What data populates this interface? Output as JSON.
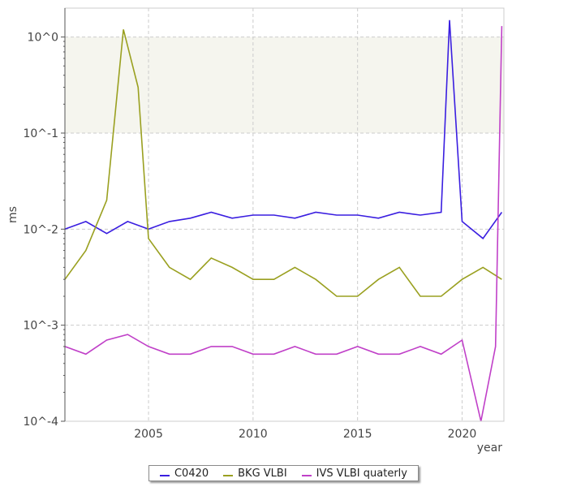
{
  "chart_data": {
    "type": "line",
    "title": "",
    "xlabel": "year",
    "ylabel": "ms",
    "yscale": "log",
    "xlim": [
      2001.0,
      2022.0
    ],
    "ylim": [
      0.0001,
      2.0
    ],
    "x_ticks": [
      2005,
      2010,
      2015,
      2020
    ],
    "x_tick_labels": [
      "2005",
      "2010",
      "2015",
      "2020"
    ],
    "y_ticks": [
      0.0001,
      0.001,
      0.01,
      0.1,
      1
    ],
    "y_tick_labels": [
      "10^-4",
      "10^-3",
      "10^-2",
      "10^-1",
      "10^0"
    ],
    "grid": true,
    "shaded_band": [
      0.1,
      1.0
    ],
    "legend_position": "bottom-center",
    "series": [
      {
        "name": "C0420",
        "color": "#3a1ee0",
        "x": [
          2001.0,
          2002.0,
          2003.0,
          2004.0,
          2005.0,
          2006.0,
          2007.0,
          2008.0,
          2009.0,
          2010.0,
          2011.0,
          2012.0,
          2013.0,
          2014.0,
          2015.0,
          2016.0,
          2017.0,
          2018.0,
          2019.0,
          2019.4,
          2020.0,
          2021.0,
          2021.9
        ],
        "y": [
          0.01,
          0.012,
          0.009,
          0.012,
          0.01,
          0.012,
          0.013,
          0.015,
          0.013,
          0.014,
          0.014,
          0.013,
          0.015,
          0.014,
          0.014,
          0.013,
          0.015,
          0.014,
          0.015,
          1.5,
          0.012,
          0.008,
          0.015
        ]
      },
      {
        "name": "BKG VLBI",
        "color": "#9aa020",
        "x": [
          2001.0,
          2002.0,
          2003.0,
          2003.8,
          2004.5,
          2005.0,
          2006.0,
          2007.0,
          2008.0,
          2009.0,
          2010.0,
          2011.0,
          2012.0,
          2013.0,
          2014.0,
          2015.0,
          2016.0,
          2017.0,
          2018.0,
          2019.0,
          2020.0,
          2021.0,
          2021.9
        ],
        "y": [
          0.003,
          0.006,
          0.02,
          1.2,
          0.3,
          0.008,
          0.004,
          0.003,
          0.005,
          0.004,
          0.003,
          0.003,
          0.004,
          0.003,
          0.002,
          0.002,
          0.003,
          0.004,
          0.002,
          0.002,
          0.003,
          0.004,
          0.003
        ]
      },
      {
        "name": "IVS VLBI quaterly",
        "color": "#c040c8",
        "x": [
          2001.0,
          2002.0,
          2003.0,
          2004.0,
          2005.0,
          2006.0,
          2007.0,
          2008.0,
          2009.0,
          2010.0,
          2011.0,
          2012.0,
          2013.0,
          2014.0,
          2015.0,
          2016.0,
          2017.0,
          2018.0,
          2019.0,
          2020.0,
          2020.9,
          2021.6,
          2021.9
        ],
        "y": [
          0.0006,
          0.0005,
          0.0007,
          0.0008,
          0.0006,
          0.0005,
          0.0005,
          0.0006,
          0.0006,
          0.0005,
          0.0005,
          0.0006,
          0.0005,
          0.0005,
          0.0006,
          0.0005,
          0.0005,
          0.0006,
          0.0005,
          0.0007,
          0.0001,
          0.0006,
          1.3
        ]
      }
    ]
  }
}
